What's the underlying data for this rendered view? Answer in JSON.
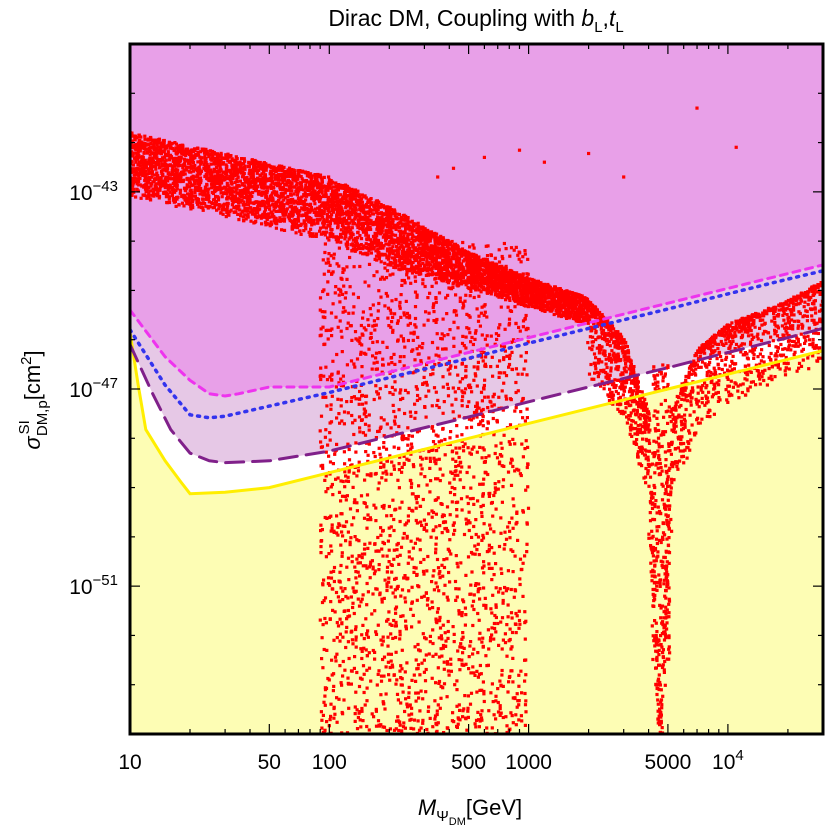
{
  "chart_data": {
    "type": "scatter",
    "title": {
      "prefix": "Dirac DM, Coupling with ",
      "b_symbol": "b",
      "b_sub": "L",
      "sep": ",",
      "t_symbol": "t",
      "t_sub": "L"
    },
    "xlabel": {
      "symbol": "M",
      "sub_psi": "Ψ",
      "sub_dm": "DM",
      "unit": "[GeV]"
    },
    "ylabel": {
      "symbol": "σ",
      "sup": "SI",
      "sub": "DM,p",
      "unit_open": "[cm",
      "unit_pow": "2",
      "unit_close": "]"
    },
    "x_scale": "log10",
    "y_scale": "log10",
    "xlim": [
      10,
      30000
    ],
    "ylim": [
      1e-54,
      1e-40
    ],
    "x_ticks": [
      {
        "value": 10,
        "label": "10"
      },
      {
        "value": 50,
        "label": "50"
      },
      {
        "value": 100,
        "label": "100"
      },
      {
        "value": 500,
        "label": "500"
      },
      {
        "value": 1000,
        "label": "1000"
      },
      {
        "value": 5000,
        "label": "5000"
      }
    ],
    "x_tick_power": {
      "value": 10000,
      "base": "10",
      "exp": "4"
    },
    "y_ticks": [
      {
        "value": 1e-43,
        "base": "10",
        "exp": "−43"
      },
      {
        "value": 1e-47,
        "base": "10",
        "exp": "−47"
      },
      {
        "value": 1e-51,
        "base": "10",
        "exp": "−51"
      }
    ],
    "regions": [
      {
        "name": "excluded-region",
        "color": "#e8a0e8",
        "description_curve": "lz_current"
      },
      {
        "name": "future-sensitivity-region",
        "color": "#e6c8e6",
        "description_curve": "darwin"
      },
      {
        "name": "neutrino-floor-region",
        "color": "#fdfdb4",
        "description_curve": "neutrino_floor"
      }
    ],
    "curves": {
      "lz_current": {
        "color": "#3333ee",
        "style": "dotted",
        "points": [
          [
            10,
            1.6e-46
          ],
          [
            15,
            1.2e-47
          ],
          [
            20,
            3e-48
          ],
          [
            25,
            2.6e-48
          ],
          [
            30,
            2.8e-48
          ],
          [
            50,
            4.5e-48
          ],
          [
            100,
            8.5e-48
          ],
          [
            200,
            1.7e-47
          ],
          [
            500,
            4.2e-47
          ],
          [
            1000,
            8.5e-47
          ],
          [
            2000,
            1.7e-46
          ],
          [
            5000,
            4.2e-46
          ],
          [
            10000,
            8.5e-46
          ],
          [
            20000,
            1.7e-45
          ],
          [
            30000,
            2.5e-45
          ]
        ]
      },
      "future_projection": {
        "color": "#ee33ee",
        "style": "dashed",
        "points": [
          [
            10,
            4e-46
          ],
          [
            15,
            4.5e-47
          ],
          [
            20,
            1.5e-47
          ],
          [
            25,
            8e-48
          ],
          [
            30,
            7.2e-48
          ],
          [
            35,
            8e-48
          ],
          [
            50,
            1.1e-47
          ],
          [
            100,
            1.1e-47
          ],
          [
            200,
            2.2e-47
          ],
          [
            500,
            5.5e-47
          ],
          [
            1000,
            1.1e-46
          ],
          [
            2000,
            2.2e-46
          ],
          [
            5000,
            5.5e-46
          ],
          [
            10000,
            1.1e-45
          ],
          [
            20000,
            2.2e-45
          ],
          [
            30000,
            3.3e-45
          ]
        ]
      },
      "darwin": {
        "color": "#80208a",
        "style": "long-dashed",
        "points": [
          [
            10,
            8e-47
          ],
          [
            13,
            8e-48
          ],
          [
            16,
            1.5e-48
          ],
          [
            20,
            5e-49
          ],
          [
            25,
            3.5e-49
          ],
          [
            30,
            3.2e-49
          ],
          [
            50,
            3.5e-49
          ],
          [
            100,
            5.5e-49
          ],
          [
            200,
            1.1e-48
          ],
          [
            500,
            2.7e-48
          ],
          [
            1000,
            5.5e-48
          ],
          [
            2000,
            1.1e-47
          ],
          [
            5000,
            2.7e-47
          ],
          [
            10000,
            5.5e-47
          ],
          [
            20000,
            1.1e-46
          ],
          [
            30000,
            1.7e-46
          ]
        ]
      },
      "neutrino_floor": {
        "color": "#ffee00",
        "style": "solid",
        "points": [
          [
            10,
            1.4e-46
          ],
          [
            11,
            1.2e-47
          ],
          [
            12,
            1.5e-48
          ],
          [
            15,
            3.5e-49
          ],
          [
            18,
            1.3e-49
          ],
          [
            20,
            7.5e-50
          ],
          [
            30,
            8e-50
          ],
          [
            50,
            1e-49
          ],
          [
            100,
            2e-49
          ],
          [
            200,
            4e-49
          ],
          [
            500,
            1e-48
          ],
          [
            1000,
            2e-48
          ],
          [
            2000,
            4e-48
          ],
          [
            5000,
            1e-47
          ],
          [
            10000,
            2e-47
          ],
          [
            20000,
            4e-47
          ],
          [
            30000,
            6e-47
          ]
        ]
      }
    },
    "scatter_series": [
      {
        "name": "dense-band",
        "color": "#ff0000",
        "x_range": [
          10,
          2000
        ],
        "upper_edge": [
          [
            10,
            1.6e-42
          ],
          [
            30,
            6e-43
          ],
          [
            100,
            2e-43
          ],
          [
            200,
            5e-44
          ],
          [
            500,
            6e-45
          ],
          [
            1000,
            1.8e-45
          ],
          [
            2000,
            7e-46
          ]
        ],
        "lower_edge": [
          [
            10,
            8e-44
          ],
          [
            30,
            3e-44
          ],
          [
            100,
            1e-44
          ],
          [
            200,
            3e-45
          ],
          [
            500,
            1.1e-45
          ],
          [
            1000,
            4.5e-46
          ],
          [
            2000,
            2e-46
          ]
        ]
      },
      {
        "name": "resonance-funnel",
        "color": "#ff0000",
        "center_x": 4600,
        "left_edge": [
          [
            2000,
            6e-46
          ],
          [
            3000,
            1e-46
          ],
          [
            4000,
            3e-48
          ],
          [
            4600,
            1e-54
          ]
        ],
        "right_edge": [
          [
            4600,
            1e-54
          ],
          [
            5200,
            3e-48
          ],
          [
            7000,
            6e-47
          ],
          [
            10000,
            2e-46
          ],
          [
            20000,
            6e-46
          ],
          [
            30000,
            1.5e-45
          ]
        ]
      },
      {
        "name": "scattered-points",
        "color": "#ff0000",
        "x_range": [
          90,
          1000
        ],
        "y_range": [
          1e-54,
          1e-44
        ]
      }
    ]
  }
}
